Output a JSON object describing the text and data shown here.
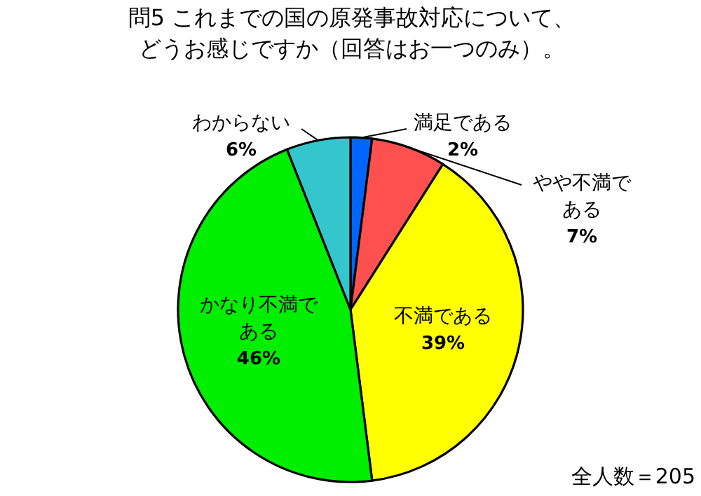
{
  "chart_data": {
    "type": "pie",
    "title": "問5 これまでの国の原発事故対応について、どうお感じですか（回答はお一つのみ）。",
    "categories": [
      "満足である",
      "やや不満である",
      "不満である",
      "かなり不満である",
      "わからない"
    ],
    "values": [
      2,
      7,
      39,
      46,
      6
    ],
    "colors": [
      "#0066ff",
      "#ff5050",
      "#ffff00",
      "#00ee00",
      "#33c6cc"
    ],
    "value_labels": [
      "2%",
      "7%",
      "39%",
      "46%",
      "6%"
    ],
    "annotations": [
      "全人数＝205"
    ]
  }
}
